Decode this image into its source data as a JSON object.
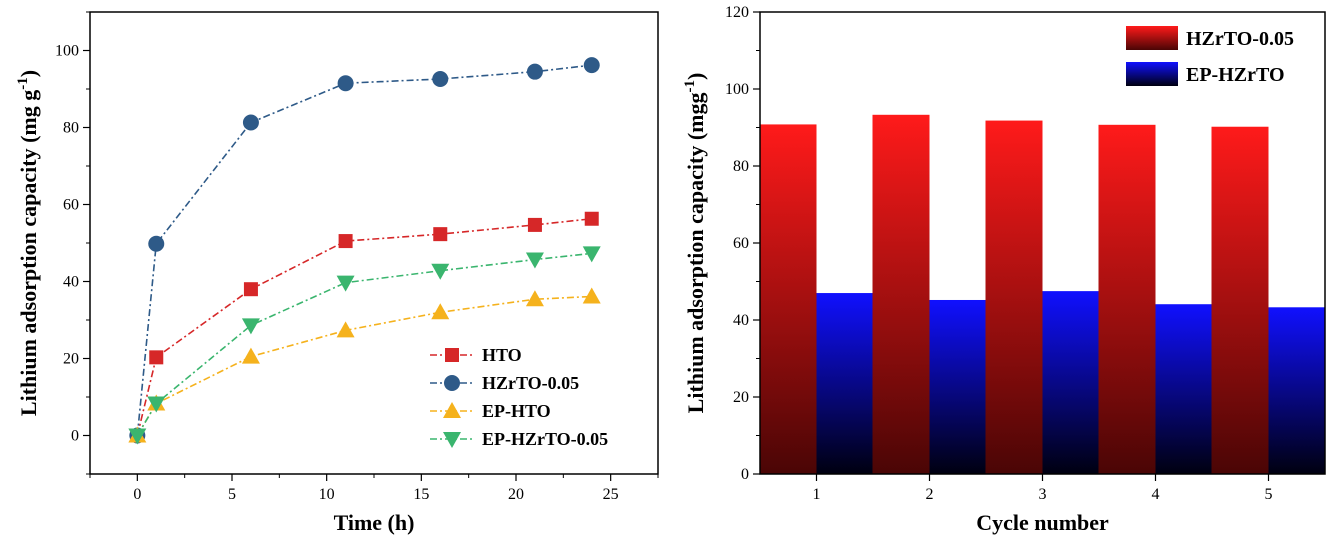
{
  "chart_data": [
    {
      "type": "line",
      "xlabel": "Time (h)",
      "ylabel": "Lithium adsorption capacity (mg g",
      "ylabel_sup": "-1",
      "ylabel_tail": ")",
      "xlim": [
        -2.5,
        27.5
      ],
      "ylim": [
        -10,
        110
      ],
      "xticks": [
        0,
        5,
        10,
        15,
        20,
        25
      ],
      "yticks": [
        0,
        20,
        40,
        60,
        80,
        100
      ],
      "grid": false,
      "legend_position": "bottom-right",
      "x": [
        0,
        1,
        6,
        11,
        16,
        21,
        24
      ],
      "series": [
        {
          "name": "HTO",
          "marker": "square",
          "color": "#d62728",
          "values": [
            0,
            20.3,
            38,
            50.5,
            52.3,
            54.7,
            56.3
          ]
        },
        {
          "name": "HZrTO-0.05",
          "marker": "circle",
          "color": "#2e5a88",
          "values": [
            0,
            49.8,
            81.3,
            91.5,
            92.6,
            94.5,
            96.2
          ]
        },
        {
          "name": "EP-HTO",
          "marker": "triangle-up",
          "color": "#f5b21d",
          "values": [
            0,
            8.3,
            20.5,
            27.3,
            32,
            35.4,
            36.1
          ]
        },
        {
          "name": "EP-HZrTO-0.05",
          "marker": "triangle-down",
          "color": "#3ab56e",
          "values": [
            0,
            8.3,
            28.6,
            39.7,
            42.8,
            45.7,
            47.3
          ]
        }
      ]
    },
    {
      "type": "bar",
      "xlabel": "Cycle number",
      "ylabel": "Lithium adsorption capacity (mgg",
      "ylabel_sup": "-1",
      "ylabel_tail": ")",
      "ylim": [
        0,
        120
      ],
      "yticks": [
        0,
        20,
        40,
        60,
        80,
        100,
        120
      ],
      "categories": [
        "1",
        "2",
        "3",
        "4",
        "5"
      ],
      "legend_position": "top-right",
      "series": [
        {
          "name": "HZrTO-0.05",
          "gradient_top": "#ff1a1a",
          "gradient_bottom": "#4a0505",
          "values": [
            90.8,
            93.3,
            91.8,
            90.7,
            90.2
          ]
        },
        {
          "name": "EP-HZrTO",
          "gradient_top": "#1010ff",
          "gradient_bottom": "#000010",
          "values": [
            47,
            45.2,
            47.5,
            44.1,
            43.3
          ]
        }
      ]
    }
  ]
}
